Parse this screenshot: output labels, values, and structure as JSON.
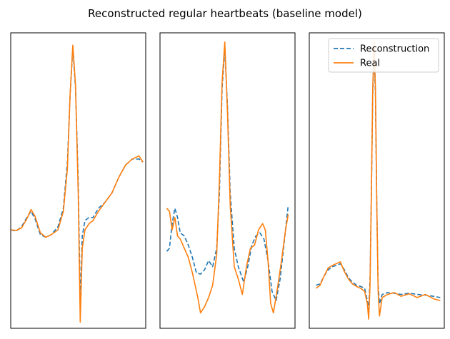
{
  "chart_data": {
    "title": "Reconstructed regular heartbeats (baseline model)",
    "legend": {
      "placement": "top-right",
      "entries": [
        {
          "label": "Reconstruction",
          "color": "#1f77b4",
          "style": "dashed"
        },
        {
          "label": "Real",
          "color": "#ff7f0e",
          "style": "solid"
        }
      ]
    },
    "panels": [
      {
        "type": "line",
        "xlim": [
          0,
          100
        ],
        "ylim": [
          -1.6,
          3.2
        ],
        "grid": false,
        "ticks": false,
        "series": [
          {
            "name": "Reconstruction",
            "color": "#1f77b4",
            "style": "dashed",
            "points": [
              [
                0,
                0
              ],
              [
                4,
                -0.02
              ],
              [
                8,
                0.05
              ],
              [
                12,
                0.2
              ],
              [
                15,
                0.3
              ],
              [
                18,
                0.18
              ],
              [
                22,
                -0.08
              ],
              [
                26,
                -0.12
              ],
              [
                30,
                -0.08
              ],
              [
                35,
                0.05
              ],
              [
                39,
                0.35
              ],
              [
                42,
                1.1
              ],
              [
                44,
                2.2
              ],
              [
                46,
                2.95
              ],
              [
                48,
                2.3
              ],
              [
                50,
                0.8
              ],
              [
                51.5,
                -1.2
              ],
              [
                53,
                -0.1
              ],
              [
                55,
                0.15
              ],
              [
                58,
                0.2
              ],
              [
                61,
                0.2
              ],
              [
                65,
                0.35
              ],
              [
                70,
                0.45
              ],
              [
                75,
                0.6
              ],
              [
                80,
                0.85
              ],
              [
                85,
                1.05
              ],
              [
                90,
                1.15
              ],
              [
                95,
                1.15
              ],
              [
                98,
                1.1
              ]
            ]
          },
          {
            "name": "Real",
            "color": "#ff7f0e",
            "style": "solid",
            "points": [
              [
                0,
                0
              ],
              [
                4,
                -0.01
              ],
              [
                8,
                0.03
              ],
              [
                12,
                0.18
              ],
              [
                15,
                0.33
              ],
              [
                18,
                0.22
              ],
              [
                22,
                -0.05
              ],
              [
                26,
                -0.12
              ],
              [
                30,
                -0.08
              ],
              [
                35,
                0.0
              ],
              [
                39,
                0.3
              ],
              [
                42,
                1.0
              ],
              [
                44,
                2.2
              ],
              [
                46,
                3.0
              ],
              [
                48,
                2.35
              ],
              [
                50,
                0.6
              ],
              [
                51.5,
                -1.5
              ],
              [
                53,
                -0.3
              ],
              [
                55,
                0.0
              ],
              [
                58,
                0.1
              ],
              [
                61,
                0.15
              ],
              [
                65,
                0.3
              ],
              [
                70,
                0.45
              ],
              [
                75,
                0.6
              ],
              [
                80,
                0.85
              ],
              [
                85,
                1.05
              ],
              [
                90,
                1.15
              ],
              [
                95,
                1.2
              ],
              [
                98,
                1.1
              ]
            ]
          }
        ]
      },
      {
        "type": "line",
        "xlim": [
          0,
          100
        ],
        "ylim": [
          -1.6,
          3.2
        ],
        "grid": false,
        "ticks": false,
        "series": [
          {
            "name": "Reconstruction",
            "color": "#1f77b4",
            "style": "dashed",
            "points": [
              [
                5,
                -0.35
              ],
              [
                7,
                -0.3
              ],
              [
                9,
                0.1
              ],
              [
                11,
                0.35
              ],
              [
                13,
                0.2
              ],
              [
                15,
                -0.05
              ],
              [
                18,
                -0.1
              ],
              [
                21,
                -0.25
              ],
              [
                24,
                -0.45
              ],
              [
                27,
                -0.7
              ],
              [
                30,
                -0.72
              ],
              [
                33,
                -0.65
              ],
              [
                36,
                -0.5
              ],
              [
                39,
                -0.6
              ],
              [
                42,
                -0.3
              ],
              [
                44,
                0.6
              ],
              [
                46,
                2.3
              ],
              [
                48,
                2.95
              ],
              [
                50,
                2.0
              ],
              [
                52,
                0.6
              ],
              [
                55,
                -0.3
              ],
              [
                58,
                -0.6
              ],
              [
                62,
                -0.85
              ],
              [
                65,
                -0.6
              ],
              [
                68,
                -0.25
              ],
              [
                71,
                -0.1
              ],
              [
                74,
                -0.05
              ],
              [
                77,
                -0.15
              ],
              [
                80,
                -0.5
              ],
              [
                83,
                -1.0
              ],
              [
                86,
                -1.15
              ],
              [
                89,
                -0.8
              ],
              [
                92,
                -0.2
              ],
              [
                95,
                0.4
              ]
            ]
          },
          {
            "name": "Real",
            "color": "#ff7f0e",
            "style": "solid",
            "points": [
              [
                5,
                0.35
              ],
              [
                7,
                0.3
              ],
              [
                9,
                0.0
              ],
              [
                11,
                0.2
              ],
              [
                13,
                -0.1
              ],
              [
                15,
                -0.15
              ],
              [
                18,
                -0.3
              ],
              [
                21,
                -0.45
              ],
              [
                24,
                -0.7
              ],
              [
                26,
                -0.9
              ],
              [
                28,
                -1.1
              ],
              [
                30,
                -1.35
              ],
              [
                33,
                -1.25
              ],
              [
                36,
                -1.1
              ],
              [
                39,
                -0.9
              ],
              [
                42,
                -0.4
              ],
              [
                44,
                0.8
              ],
              [
                46,
                2.4
              ],
              [
                48,
                3.05
              ],
              [
                50,
                1.9
              ],
              [
                52,
                0.4
              ],
              [
                55,
                -0.6
              ],
              [
                58,
                -0.8
              ],
              [
                61,
                -1.05
              ],
              [
                64,
                -0.6
              ],
              [
                67,
                -0.3
              ],
              [
                70,
                -0.25
              ],
              [
                73,
                0.0
              ],
              [
                76,
                0.1
              ],
              [
                78,
                0.0
              ],
              [
                80,
                -0.5
              ],
              [
                82,
                -1.2
              ],
              [
                84,
                -1.35
              ],
              [
                87,
                -0.95
              ],
              [
                90,
                -0.5
              ],
              [
                93,
                0.0
              ],
              [
                95,
                0.25
              ]
            ]
          }
        ]
      },
      {
        "type": "line",
        "xlim": [
          0,
          100
        ],
        "ylim": [
          -1.6,
          3.2
        ],
        "grid": false,
        "ticks": false,
        "series": [
          {
            "name": "Reconstruction",
            "color": "#1f77b4",
            "style": "dashed",
            "points": [
              [
                5,
                -0.9
              ],
              [
                8,
                -0.88
              ],
              [
                11,
                -0.75
              ],
              [
                14,
                -0.65
              ],
              [
                17,
                -0.6
              ],
              [
                20,
                -0.58
              ],
              [
                23,
                -0.55
              ],
              [
                26,
                -0.65
              ],
              [
                29,
                -0.78
              ],
              [
                32,
                -0.85
              ],
              [
                35,
                -0.9
              ],
              [
                38,
                -0.92
              ],
              [
                41,
                -0.95
              ],
              [
                43,
                -1.15
              ],
              [
                44,
                -1.3
              ],
              [
                45,
                -0.8
              ],
              [
                46,
                0.6
              ],
              [
                47,
                2.2
              ],
              [
                48,
                2.9
              ],
              [
                49,
                2.2
              ],
              [
                50,
                0.4
              ],
              [
                51,
                -0.9
              ],
              [
                52,
                -1.2
              ],
              [
                54,
                -1.05
              ],
              [
                58,
                -1.02
              ],
              [
                63,
                -1.03
              ],
              [
                68,
                -1.05
              ],
              [
                74,
                -1.03
              ],
              [
                80,
                -1.05
              ],
              [
                86,
                -1.06
              ],
              [
                92,
                -1.08
              ],
              [
                97,
                -1.1
              ]
            ]
          },
          {
            "name": "Real",
            "color": "#ff7f0e",
            "style": "solid",
            "points": [
              [
                5,
                -0.95
              ],
              [
                8,
                -0.9
              ],
              [
                11,
                -0.75
              ],
              [
                14,
                -0.62
              ],
              [
                17,
                -0.58
              ],
              [
                20,
                -0.55
              ],
              [
                23,
                -0.52
              ],
              [
                26,
                -0.68
              ],
              [
                29,
                -0.8
              ],
              [
                32,
                -0.88
              ],
              [
                35,
                -0.92
              ],
              [
                38,
                -0.95
              ],
              [
                41,
                -1.0
              ],
              [
                43,
                -1.2
              ],
              [
                44,
                -1.45
              ],
              [
                45,
                -0.9
              ],
              [
                46,
                0.6
              ],
              [
                47,
                2.3
              ],
              [
                48,
                3.05
              ],
              [
                49,
                2.3
              ],
              [
                50,
                0.4
              ],
              [
                51,
                -1.0
              ],
              [
                52,
                -1.4
              ],
              [
                54,
                -1.1
              ],
              [
                58,
                -1.05
              ],
              [
                63,
                -1.02
              ],
              [
                68,
                -1.08
              ],
              [
                74,
                -1.04
              ],
              [
                80,
                -1.1
              ],
              [
                86,
                -1.05
              ],
              [
                92,
                -1.12
              ],
              [
                97,
                -1.15
              ]
            ]
          }
        ]
      }
    ]
  }
}
